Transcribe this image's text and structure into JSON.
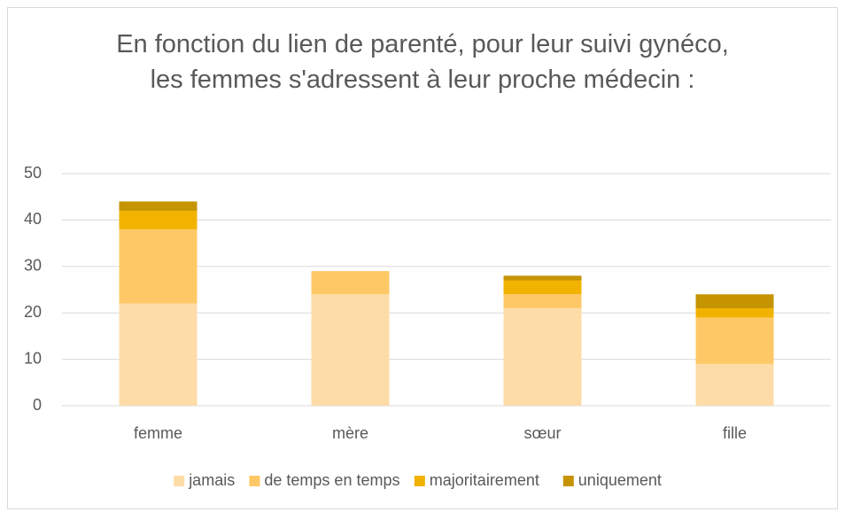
{
  "chart_data": {
    "type": "stacked_bar",
    "title": "En fonction du lien de parenté, pour leur suivi gynéco, les femmes s'adressent à leur proche médecin :",
    "categories": [
      "femme",
      "mère",
      "sœur",
      "fille"
    ],
    "series": [
      {
        "name": "jamais",
        "color": "#fddca8",
        "values": [
          22,
          24,
          21,
          9
        ]
      },
      {
        "name": "de temps en temps",
        "color": "#fec867",
        "values": [
          16,
          5,
          3,
          10
        ]
      },
      {
        "name": "majoritairement",
        "color": "#f2b200",
        "values": [
          4,
          0,
          3,
          2
        ]
      },
      {
        "name": "uniquement",
        "color": "#c59400",
        "values": [
          2,
          0,
          1,
          3
        ]
      }
    ],
    "ylim": [
      0,
      50
    ],
    "yticks": [
      0,
      10,
      20,
      30,
      40,
      50
    ],
    "grid": true,
    "legend": "bottom"
  }
}
